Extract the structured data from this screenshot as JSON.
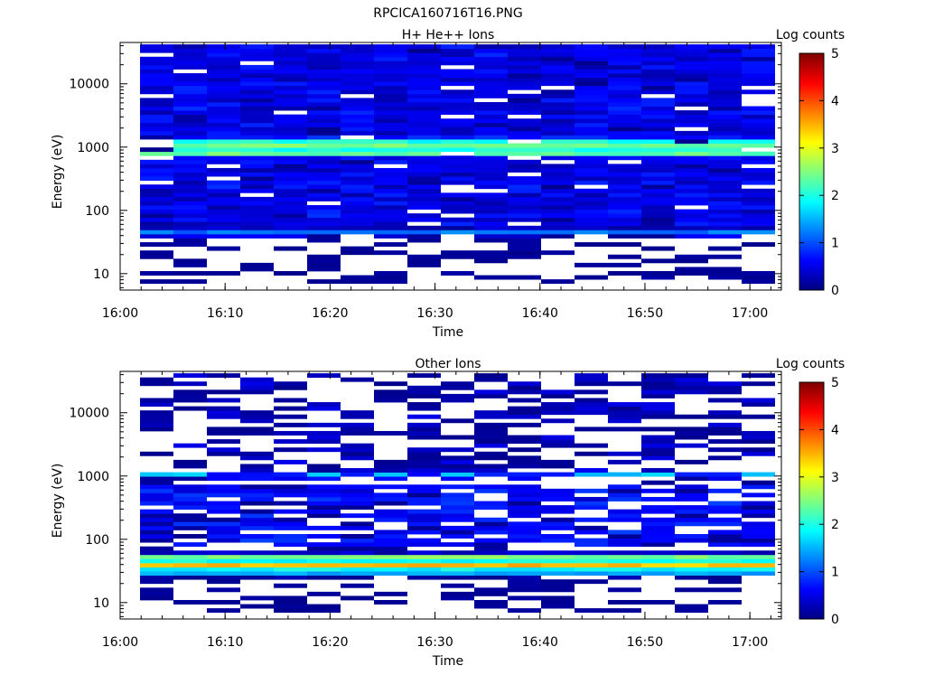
{
  "figure": {
    "title": "RPCICA160716T16.PNG"
  },
  "chart_data": [
    {
      "type": "heatmap",
      "title": "H+ He++ Ions",
      "xlabel": "Time",
      "ylabel": "Energy (eV)",
      "x_tick_labels": [
        "16:00",
        "16:10",
        "16:20",
        "16:30",
        "16:40",
        "16:50",
        "17:00"
      ],
      "x_range": [
        "16:00",
        "17:03"
      ],
      "y_scale": "log",
      "y_range": [
        5.5,
        45000
      ],
      "y_tick_labels": [
        "10",
        "100",
        "1000",
        "10000"
      ],
      "colorbar": {
        "label": "Log counts",
        "range": [
          0,
          5
        ],
        "tick_labels": [
          "0",
          "1",
          "2",
          "3",
          "4",
          "5"
        ],
        "colormap": "jet"
      },
      "time_bins": [
        "16:02",
        "16:05",
        "16:08",
        "16:12",
        "16:15",
        "16:18",
        "16:21",
        "16:25",
        "16:28",
        "16:31",
        "16:34",
        "16:38",
        "16:41",
        "16:44",
        "16:47",
        "16:50",
        "16:54",
        "16:57",
        "17:00"
      ],
      "energy_bands_eV": [
        {
          "energy": 1000,
          "log_counts": 3.0
        },
        {
          "energy": 800,
          "log_counts": 2.4
        },
        {
          "energy": 1250,
          "log_counts": 2.0
        },
        {
          "energy": 45,
          "log_counts": 1.2
        },
        {
          "energy": 10,
          "log_counts": 0.1
        },
        {
          "energy": 10000,
          "log_counts": 0.6
        }
      ]
    },
    {
      "type": "heatmap",
      "title": "Other Ions",
      "xlabel": "Time",
      "ylabel": "Energy (eV)",
      "x_tick_labels": [
        "16:00",
        "16:10",
        "16:20",
        "16:30",
        "16:40",
        "16:50",
        "17:00"
      ],
      "x_range": [
        "16:00",
        "17:03"
      ],
      "y_scale": "log",
      "y_range": [
        5.5,
        45000
      ],
      "y_tick_labels": [
        "10",
        "100",
        "1000",
        "10000"
      ],
      "colorbar": {
        "label": "Log counts",
        "range": [
          0,
          5
        ],
        "tick_labels": [
          "0",
          "1",
          "2",
          "3",
          "4",
          "5"
        ],
        "colormap": "jet"
      },
      "time_bins": [
        "16:02",
        "16:05",
        "16:08",
        "16:12",
        "16:15",
        "16:18",
        "16:21",
        "16:25",
        "16:28",
        "16:31",
        "16:34",
        "16:38",
        "16:41",
        "16:44",
        "16:47",
        "16:50",
        "16:54",
        "16:57",
        "17:00"
      ],
      "energy_bands_eV": [
        {
          "energy": 40,
          "log_counts": 3.5
        },
        {
          "energy": 50,
          "log_counts": 3.0
        },
        {
          "energy": 32,
          "log_counts": 2.2
        },
        {
          "energy": 1050,
          "log_counts": 1.6
        },
        {
          "energy": 10000,
          "log_counts": 0.3
        }
      ]
    }
  ]
}
